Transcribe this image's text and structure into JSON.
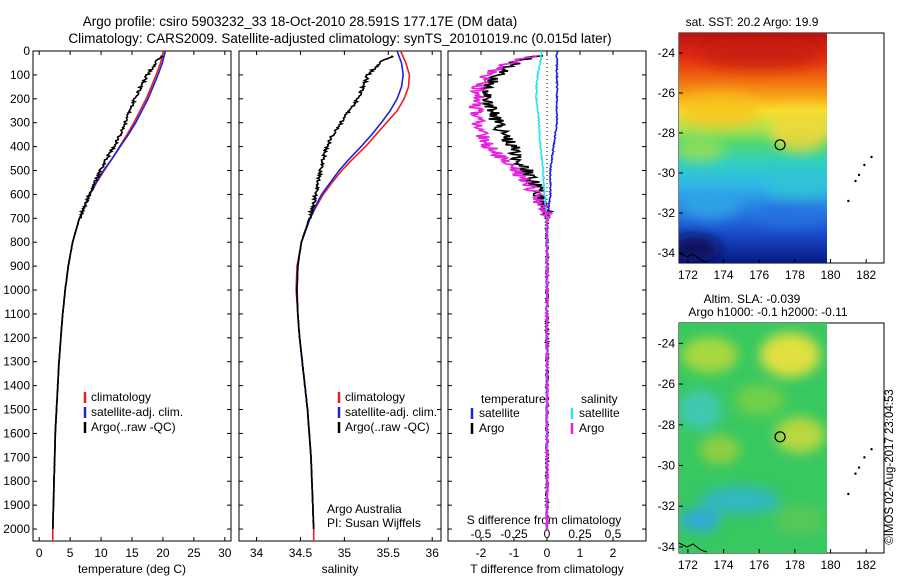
{
  "header": {
    "title_line1": "Argo profile: csiro 5903232_33 18-Oct-2010 28.591S 177.17E (DM data)",
    "title_line2": "Climatology: CARS2009. Satellite-adjusted climatology: synTS_20101019.nc (0.015d later)"
  },
  "colors": {
    "climatology": "#e8201e",
    "satellite": "#1f23d8",
    "argo": "#000000",
    "salinity_satellite": "#33e0f0",
    "salinity_argo": "#e81fe0"
  },
  "chart_data": [
    {
      "type": "line",
      "panel": "temperature",
      "xlabel": "temperature (deg C)",
      "xlim": [
        -1,
        31
      ],
      "xticks": [
        "0",
        "5",
        "10",
        "15",
        "20",
        "25",
        "30"
      ],
      "ylim": [
        2050,
        0
      ],
      "yticks": [
        "0",
        "100",
        "200",
        "300",
        "400",
        "500",
        "600",
        "700",
        "800",
        "900",
        "1000",
        "1100",
        "1200",
        "1300",
        "1400",
        "1500",
        "1600",
        "1700",
        "1800",
        "1900",
        "2000"
      ],
      "legend": [
        "climatology",
        "satellite-adj. clim.",
        "Argo(..raw -QC)"
      ],
      "series": [
        {
          "name": "climatology",
          "depth": [
            0,
            50,
            100,
            150,
            200,
            250,
            300,
            350,
            400,
            450,
            500,
            550,
            600,
            650,
            700,
            800,
            900,
            1000,
            1100,
            1200,
            1300,
            1400,
            1500,
            1600,
            1700,
            1800,
            1900,
            2000,
            2050
          ],
          "values": [
            20.1,
            19.6,
            18.9,
            18.1,
            17.3,
            16.3,
            15.3,
            14.2,
            13.0,
            11.8,
            10.5,
            9.3,
            8.2,
            7.3,
            6.5,
            5.4,
            4.7,
            4.2,
            3.8,
            3.5,
            3.2,
            3.0,
            2.8,
            2.6,
            2.5,
            2.4,
            2.3,
            2.2,
            2.2
          ]
        },
        {
          "name": "satellite-adj. clim.",
          "depth": [
            0,
            50,
            100,
            150,
            200,
            250,
            300,
            350,
            400,
            450,
            500,
            550,
            600,
            650,
            700,
            800,
            900,
            1000,
            1100,
            1200,
            1300,
            1400,
            1500,
            1600,
            1700,
            1800,
            1900,
            2000
          ],
          "values": [
            20.4,
            19.9,
            19.2,
            18.4,
            17.6,
            16.6,
            15.6,
            14.4,
            13.1,
            11.8,
            10.4,
            9.2,
            8.1,
            7.3,
            6.5,
            5.4,
            4.7,
            4.2,
            3.8,
            3.5,
            3.2,
            3.0,
            2.8,
            2.6,
            2.5,
            2.4,
            2.3,
            2.2
          ]
        },
        {
          "name": "Argo(..raw -QC)",
          "depth": [
            20,
            50,
            100,
            150,
            200,
            250,
            300,
            350,
            400,
            450,
            500,
            550,
            600,
            650,
            700,
            800,
            900,
            1000,
            1100,
            1200,
            1300,
            1400,
            1500,
            1600,
            1700,
            1800,
            1900,
            2000
          ],
          "values": [
            19.8,
            18.8,
            17.5,
            16.4,
            15.4,
            14.7,
            13.9,
            13.1,
            12.1,
            10.9,
            9.9,
            9.0,
            8.1,
            7.3,
            6.5,
            5.4,
            4.7,
            4.2,
            3.8,
            3.5,
            3.2,
            3.0,
            2.8,
            2.6,
            2.5,
            2.4,
            2.3,
            2.2
          ]
        }
      ]
    },
    {
      "type": "line",
      "panel": "salinity",
      "xlabel": "salinity",
      "xlim": [
        33.8,
        36.1
      ],
      "xticks": [
        "34",
        "34.5",
        "35",
        "35.5",
        "36"
      ],
      "ylim": [
        2050,
        0
      ],
      "legend": [
        "climatology",
        "satellite-adj. clim.",
        "Argo(..raw -QC)"
      ],
      "annotation": [
        "Argo Australia",
        "PI: Susan Wijffels"
      ],
      "series": [
        {
          "name": "climatology",
          "depth": [
            0,
            50,
            100,
            150,
            200,
            250,
            300,
            350,
            400,
            450,
            500,
            550,
            600,
            650,
            700,
            800,
            900,
            1000,
            1100,
            1200,
            1300,
            1400,
            1500,
            1600,
            1700,
            1800,
            1900,
            2000,
            2050
          ],
          "values": [
            35.64,
            35.7,
            35.74,
            35.73,
            35.68,
            35.6,
            35.48,
            35.36,
            35.24,
            35.1,
            34.97,
            34.86,
            34.76,
            34.68,
            34.61,
            34.51,
            34.46,
            34.45,
            34.47,
            34.49,
            34.52,
            34.55,
            34.58,
            34.6,
            34.62,
            34.63,
            34.64,
            34.65,
            34.65
          ]
        },
        {
          "name": "satellite-adj. clim.",
          "depth": [
            0,
            50,
            100,
            150,
            200,
            250,
            300,
            350,
            400,
            450,
            500,
            550,
            600,
            650,
            700,
            800,
            900,
            1000,
            1100,
            1200,
            1300,
            1400,
            1500,
            1600,
            1700,
            1800,
            1900,
            2000
          ],
          "values": [
            35.6,
            35.65,
            35.67,
            35.65,
            35.6,
            35.52,
            35.42,
            35.31,
            35.19,
            35.06,
            34.94,
            34.84,
            34.74,
            34.67,
            34.61,
            34.51,
            34.47,
            34.46,
            34.47,
            34.49,
            34.52,
            34.55,
            34.58,
            34.6,
            34.62,
            34.63,
            34.64,
            34.65
          ]
        },
        {
          "name": "Argo(..raw -QC)",
          "depth": [
            20,
            50,
            100,
            150,
            200,
            250,
            300,
            350,
            400,
            450,
            500,
            550,
            600,
            650,
            700,
            800,
            900,
            1000,
            1100,
            1200,
            1300,
            1400,
            1500,
            1600,
            1700,
            1800,
            1900,
            2000
          ],
          "values": [
            35.55,
            35.4,
            35.27,
            35.21,
            35.15,
            35.06,
            34.96,
            34.87,
            34.8,
            34.76,
            34.73,
            34.7,
            34.67,
            34.64,
            34.6,
            34.51,
            34.47,
            34.46,
            34.47,
            34.49,
            34.52,
            34.55,
            34.58,
            34.6,
            34.62,
            34.63,
            34.64,
            34.65
          ]
        }
      ]
    },
    {
      "type": "line",
      "panel": "difference",
      "xlabel_top": "S difference from climatology",
      "xticks_top": [
        "-0.5",
        "-0.25",
        "0",
        "0.25",
        "0.5"
      ],
      "xlabel": "T difference from climatology",
      "xlim": [
        -3,
        3
      ],
      "xticks": [
        "-2",
        "-1",
        "0",
        "1",
        "2"
      ],
      "ylim": [
        2050,
        0
      ],
      "legend_temperature": [
        "temperature",
        "satellite",
        "Argo"
      ],
      "legend_salinity": [
        "salinity",
        "satellite",
        "Argo"
      ],
      "series": [
        {
          "name": "T satellite",
          "depth": [
            0,
            50,
            100,
            150,
            200,
            300,
            400,
            500,
            600,
            700,
            800,
            900,
            1000,
            1200,
            1400,
            1600,
            1800,
            2000
          ],
          "values": [
            0.3,
            0.3,
            0.3,
            0.3,
            0.3,
            0.3,
            0.2,
            0.1,
            0.1,
            0.0,
            0.0,
            0.0,
            0.0,
            0.0,
            0.0,
            0.0,
            0.0,
            0.0
          ]
        },
        {
          "name": "T Argo",
          "depth": [
            20,
            50,
            100,
            150,
            200,
            250,
            300,
            350,
            400,
            450,
            500,
            550,
            600,
            650,
            700,
            800,
            900,
            1000,
            1100,
            1200,
            1400,
            1600,
            1800,
            2000
          ],
          "values": [
            -0.3,
            -1.0,
            -1.5,
            -1.8,
            -1.9,
            -1.7,
            -1.5,
            -1.3,
            -1.0,
            -0.9,
            -0.6,
            -0.4,
            -0.2,
            -0.1,
            0.0,
            0.0,
            0.0,
            0.0,
            0.0,
            0.0,
            0.0,
            0.0,
            0.0,
            0.0
          ]
        },
        {
          "name": "S satellite",
          "depth": [
            0,
            50,
            100,
            150,
            200,
            300,
            400,
            500,
            600,
            700,
            800,
            1000,
            1200,
            1400,
            1600,
            1800,
            2000
          ],
          "values": [
            -0.04,
            -0.05,
            -0.07,
            -0.08,
            -0.08,
            -0.06,
            -0.05,
            -0.03,
            -0.02,
            0.0,
            0.0,
            0.0,
            0.0,
            0.0,
            0.0,
            0.0,
            0.0
          ]
        },
        {
          "name": "S Argo",
          "depth": [
            20,
            50,
            100,
            150,
            200,
            250,
            300,
            350,
            400,
            450,
            500,
            550,
            600,
            650,
            700,
            800,
            900,
            1000,
            1200,
            1400,
            1600,
            1800,
            2000
          ],
          "values": [
            -0.09,
            -0.3,
            -0.47,
            -0.52,
            -0.53,
            -0.54,
            -0.52,
            -0.49,
            -0.44,
            -0.34,
            -0.24,
            -0.16,
            -0.09,
            -0.04,
            0.0,
            0.0,
            0.0,
            0.0,
            0.0,
            0.0,
            0.0,
            0.0,
            0.0
          ]
        }
      ]
    },
    {
      "type": "heatmap",
      "panel": "sst-map",
      "title": "sat. SST: 20.2  Argo: 19.9",
      "xlim": [
        171.5,
        183
      ],
      "ylim": [
        -34.5,
        -23
      ],
      "xticks": [
        "172",
        "174",
        "176",
        "178",
        "180",
        "182"
      ],
      "yticks": [
        "-24",
        "-26",
        "-28",
        "-30",
        "-32",
        "-34"
      ],
      "marker": {
        "lon": 177.17,
        "lat": -28.591
      }
    },
    {
      "type": "heatmap",
      "panel": "sla-map",
      "title_line1": "Altim. SLA: -0.039",
      "title_line2": "Argo h1000: -0.1 h2000: -0.11",
      "xlim": [
        171.5,
        183
      ],
      "ylim": [
        -34.3,
        -23
      ],
      "xticks": [
        "172",
        "174",
        "176",
        "178",
        "180",
        "182"
      ],
      "yticks": [
        "-24",
        "-26",
        "-28",
        "-30",
        "-32",
        "-34"
      ],
      "marker": {
        "lon": 177.17,
        "lat": -28.591
      }
    }
  ],
  "footer": {
    "credit": "©IMOS 02-Aug-2017 23:04:53"
  }
}
